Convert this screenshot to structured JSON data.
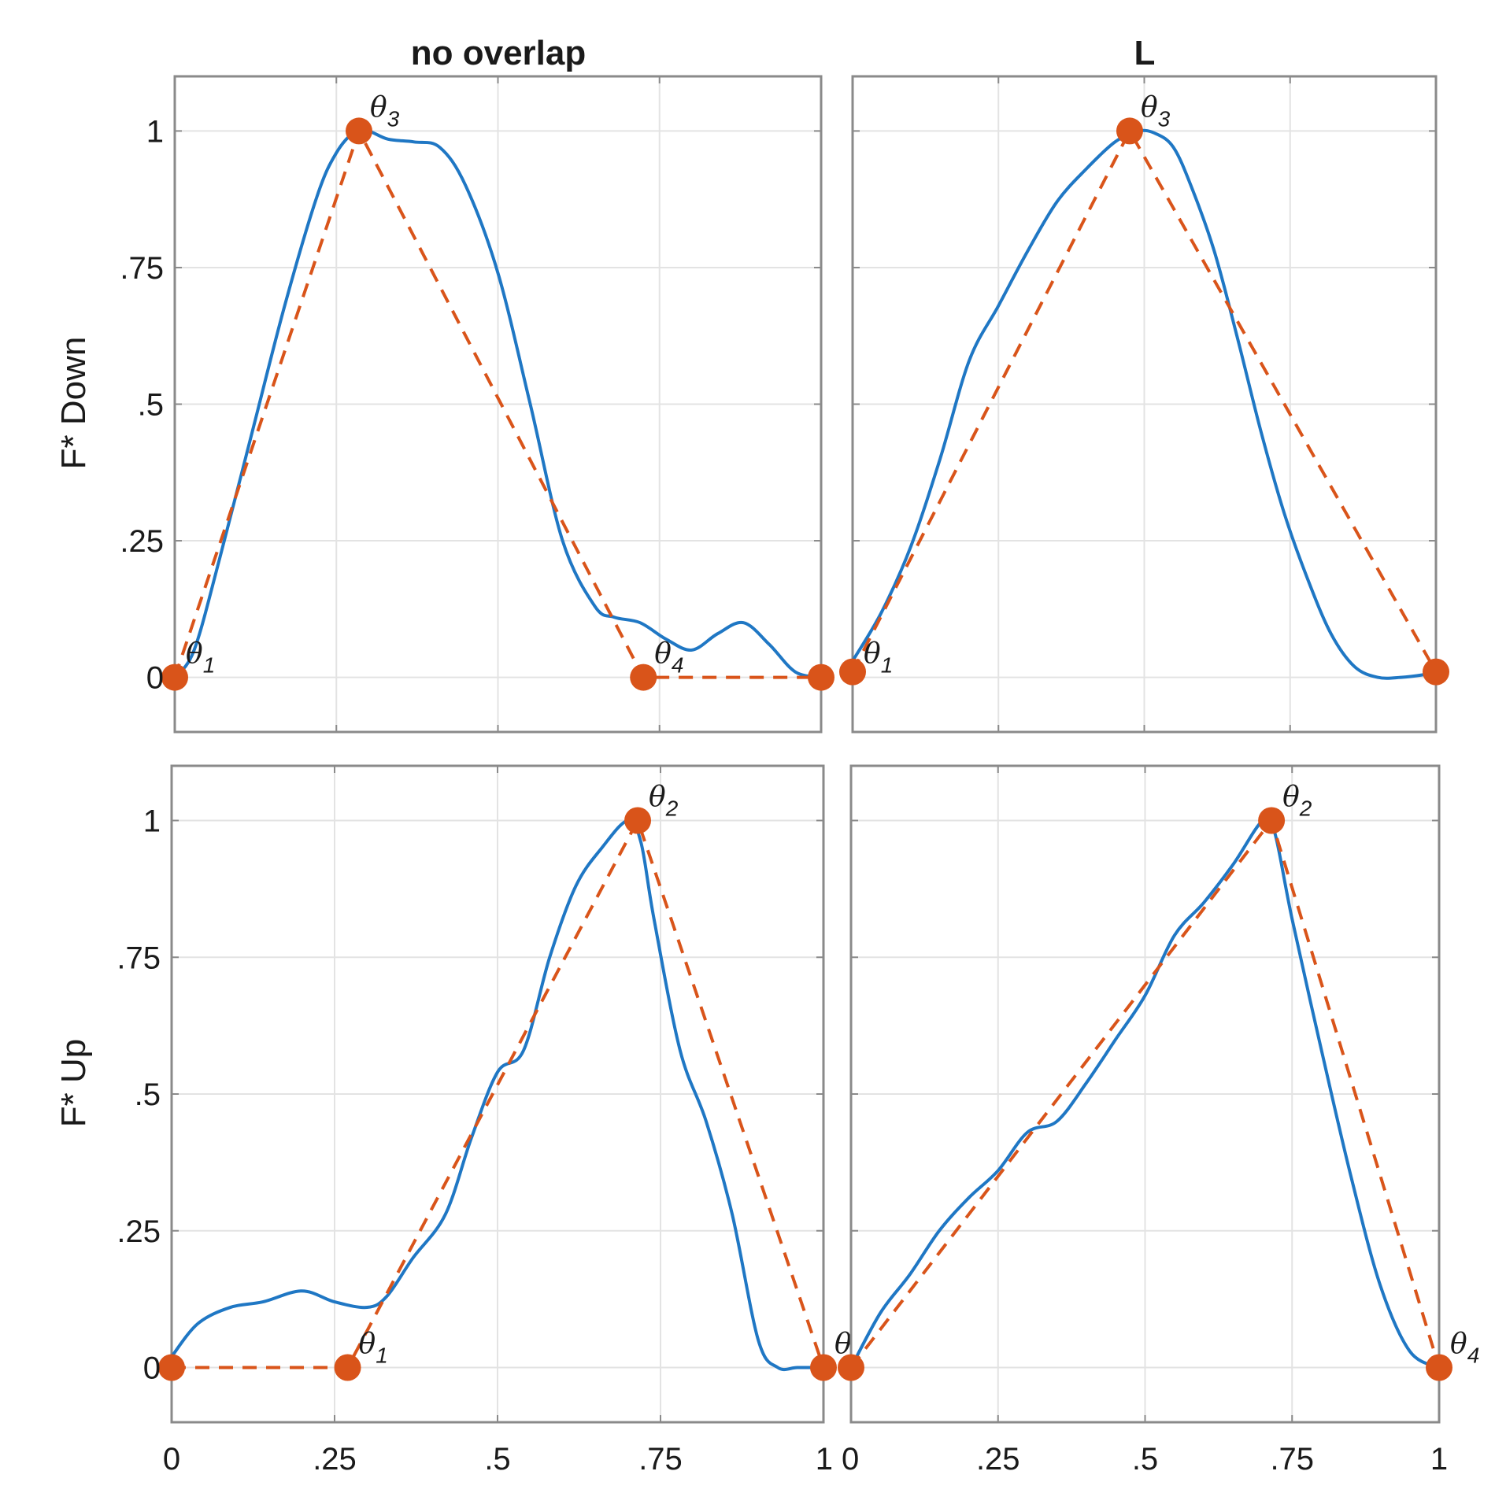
{
  "colors": {
    "curve": "#1f77c4",
    "dashed": "#d9541a",
    "grid": "#e3e3e3",
    "frame": "#8a8a8a"
  },
  "column_titles": [
    "no overlap",
    "L"
  ],
  "row_labels": [
    "F* Down",
    "F* Up"
  ],
  "x_tick_labels_left": [
    "0",
    ".25",
    ".5",
    ".75",
    "1"
  ],
  "x_tick_labels_right": [
    "0",
    ".25",
    ".5",
    ".75",
    "1"
  ],
  "y_tick_labels": [
    "0",
    ".25",
    ".5",
    ".75",
    "1"
  ],
  "chart_data": [
    {
      "type": "line",
      "row_label": "F* Down",
      "column_title": "no overlap",
      "xlim": [
        0,
        1
      ],
      "ylim": [
        -0.1,
        1.1
      ],
      "x_ticks": [
        0,
        0.25,
        0.5,
        0.75,
        1
      ],
      "y_ticks": [
        0,
        0.25,
        0.5,
        0.75,
        1
      ],
      "grid": true,
      "series": [
        {
          "style": "solid",
          "color": "curve",
          "x": [
            0,
            0.03,
            0.07,
            0.12,
            0.17,
            0.22,
            0.25,
            0.28,
            0.3,
            0.33,
            0.37,
            0.41,
            0.45,
            0.5,
            0.55,
            0.6,
            0.65,
            0.68,
            0.72,
            0.76,
            0.8,
            0.84,
            0.88,
            0.92,
            0.96,
            1
          ],
          "y": [
            0,
            0.05,
            0.22,
            0.45,
            0.68,
            0.88,
            0.96,
            1.0,
            1.0,
            0.985,
            0.98,
            0.97,
            0.9,
            0.74,
            0.5,
            0.25,
            0.13,
            0.11,
            0.1,
            0.07,
            0.05,
            0.08,
            0.1,
            0.06,
            0.01,
            0
          ]
        },
        {
          "style": "dashed",
          "color": "dashed",
          "markers": true,
          "x": [
            0,
            0.285,
            0.725,
            1
          ],
          "y": [
            0,
            1,
            0,
            0
          ]
        }
      ],
      "annotations": [
        {
          "text": "θ",
          "sub": "1",
          "x": 0,
          "y": 0
        },
        {
          "text": "θ",
          "sub": "3",
          "x": 0.285,
          "y": 1
        },
        {
          "text": "θ",
          "sub": "4",
          "x": 0.725,
          "y": 0
        }
      ]
    },
    {
      "type": "line",
      "row_label": "F* Down",
      "column_title": "L",
      "xlim": [
        0,
        1
      ],
      "ylim": [
        -0.1,
        1.1
      ],
      "x_ticks": [
        0,
        0.25,
        0.5,
        0.75,
        1
      ],
      "y_ticks": [
        0,
        0.25,
        0.5,
        0.75,
        1
      ],
      "grid": true,
      "series": [
        {
          "style": "solid",
          "color": "curve",
          "x": [
            0,
            0.05,
            0.1,
            0.15,
            0.2,
            0.25,
            0.3,
            0.35,
            0.4,
            0.45,
            0.49,
            0.52,
            0.55,
            0.58,
            0.62,
            0.66,
            0.7,
            0.74,
            0.78,
            0.82,
            0.86,
            0.9,
            0.94,
            0.98,
            1
          ],
          "y": [
            0.03,
            0.12,
            0.24,
            0.4,
            0.58,
            0.68,
            0.78,
            0.87,
            0.93,
            0.98,
            1.0,
            0.995,
            0.97,
            0.9,
            0.78,
            0.62,
            0.45,
            0.3,
            0.18,
            0.08,
            0.02,
            0.0,
            0.0,
            0.005,
            0.01
          ]
        },
        {
          "style": "dashed",
          "color": "dashed",
          "markers": true,
          "x": [
            0,
            0.475,
            1
          ],
          "y": [
            0.01,
            1,
            0.01
          ]
        }
      ],
      "annotations": [
        {
          "text": "θ",
          "sub": "1",
          "x": 0,
          "y": 0
        },
        {
          "text": "θ",
          "sub": "3",
          "x": 0.475,
          "y": 1
        }
      ]
    },
    {
      "type": "line",
      "row_label": "F* Up",
      "column_title": "no overlap",
      "xlim": [
        0,
        1
      ],
      "ylim": [
        -0.1,
        1.1
      ],
      "x_ticks": [
        0,
        0.25,
        0.5,
        0.75,
        1
      ],
      "y_ticks": [
        0,
        0.25,
        0.5,
        0.75,
        1
      ],
      "grid": true,
      "series": [
        {
          "style": "solid",
          "color": "curve",
          "x": [
            0,
            0.04,
            0.09,
            0.14,
            0.2,
            0.25,
            0.3,
            0.33,
            0.37,
            0.42,
            0.46,
            0.5,
            0.54,
            0.58,
            0.62,
            0.66,
            0.7,
            0.72,
            0.74,
            0.78,
            0.82,
            0.86,
            0.9,
            0.93,
            0.96,
            1
          ],
          "y": [
            0.02,
            0.08,
            0.11,
            0.12,
            0.14,
            0.12,
            0.11,
            0.13,
            0.2,
            0.28,
            0.42,
            0.54,
            0.58,
            0.75,
            0.88,
            0.95,
            1.0,
            0.96,
            0.82,
            0.58,
            0.45,
            0.28,
            0.05,
            0.0,
            0.0,
            0.0
          ]
        },
        {
          "style": "dashed",
          "color": "dashed",
          "markers": true,
          "x": [
            0,
            0.27,
            0.715,
            1
          ],
          "y": [
            0,
            0,
            1,
            0
          ]
        }
      ],
      "annotations": [
        {
          "text": "θ",
          "sub": "1",
          "x": 0.27,
          "y": 0
        },
        {
          "text": "θ",
          "sub": "2",
          "x": 0.715,
          "y": 1
        },
        {
          "text": "θ",
          "sub": "",
          "x": 1,
          "y": 0
        }
      ]
    },
    {
      "type": "line",
      "row_label": "F* Up",
      "column_title": "L",
      "xlim": [
        0,
        1
      ],
      "ylim": [
        -0.1,
        1.1
      ],
      "x_ticks": [
        0,
        0.25,
        0.5,
        0.75,
        1
      ],
      "y_ticks": [
        0,
        0.25,
        0.5,
        0.75,
        1
      ],
      "grid": true,
      "series": [
        {
          "style": "solid",
          "color": "curve",
          "x": [
            0,
            0.05,
            0.1,
            0.15,
            0.2,
            0.25,
            0.3,
            0.35,
            0.4,
            0.45,
            0.5,
            0.55,
            0.6,
            0.65,
            0.7,
            0.72,
            0.75,
            0.8,
            0.85,
            0.9,
            0.95,
            1
          ],
          "y": [
            0.0,
            0.1,
            0.17,
            0.25,
            0.31,
            0.36,
            0.43,
            0.45,
            0.52,
            0.6,
            0.68,
            0.79,
            0.85,
            0.92,
            1.0,
            0.98,
            0.82,
            0.58,
            0.35,
            0.15,
            0.03,
            0.0
          ]
        },
        {
          "style": "dashed",
          "color": "dashed",
          "markers": true,
          "x": [
            0,
            0.715,
            1
          ],
          "y": [
            0,
            1,
            0
          ]
        }
      ],
      "annotations": [
        {
          "text": "θ",
          "sub": "2",
          "x": 0.715,
          "y": 1
        },
        {
          "text": "θ",
          "sub": "4",
          "x": 1,
          "y": 0
        }
      ]
    }
  ]
}
